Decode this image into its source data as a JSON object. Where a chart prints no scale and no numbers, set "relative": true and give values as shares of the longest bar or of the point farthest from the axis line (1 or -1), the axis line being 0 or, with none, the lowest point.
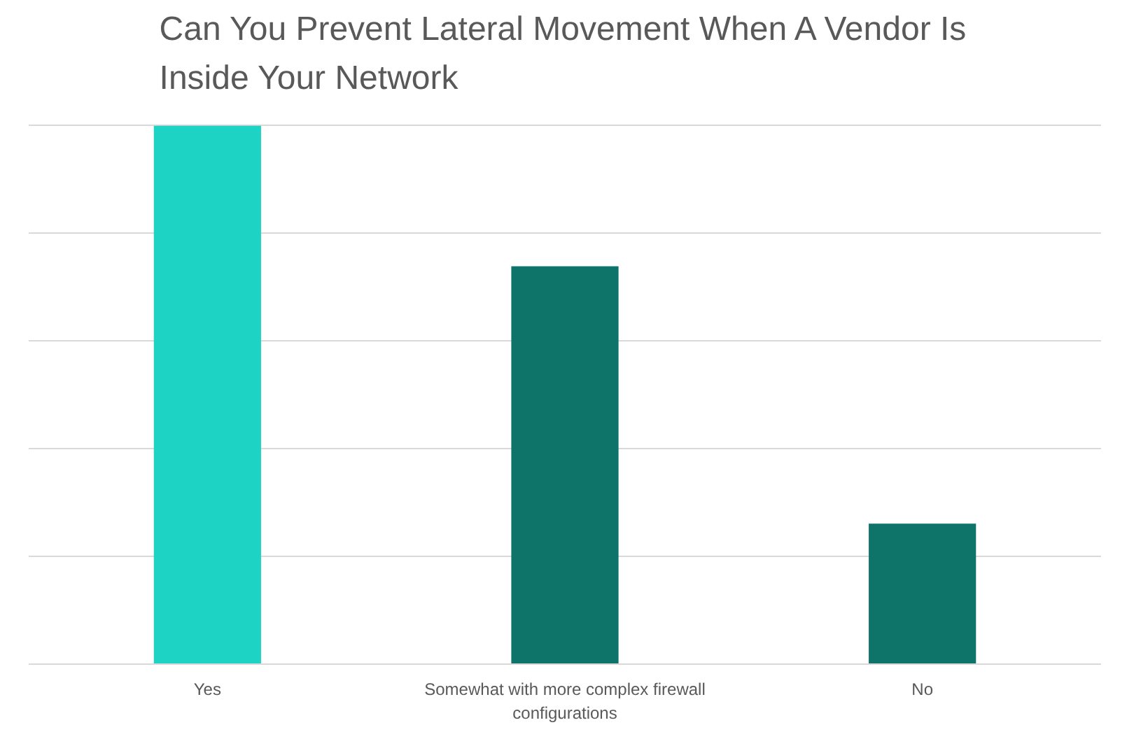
{
  "chart_data": {
    "type": "bar",
    "title": "Can You Prevent Lateral Movement When A Vendor Is Inside Your Network",
    "categories": [
      "Yes",
      "Somewhat with more complex firewall configurations",
      "No"
    ],
    "values": [
      1,
      0.739,
      0.261
    ],
    "colors": [
      "#1dd3c4",
      "#0e7369",
      "#0e7369"
    ],
    "relative": true,
    "grid": "y"
  }
}
